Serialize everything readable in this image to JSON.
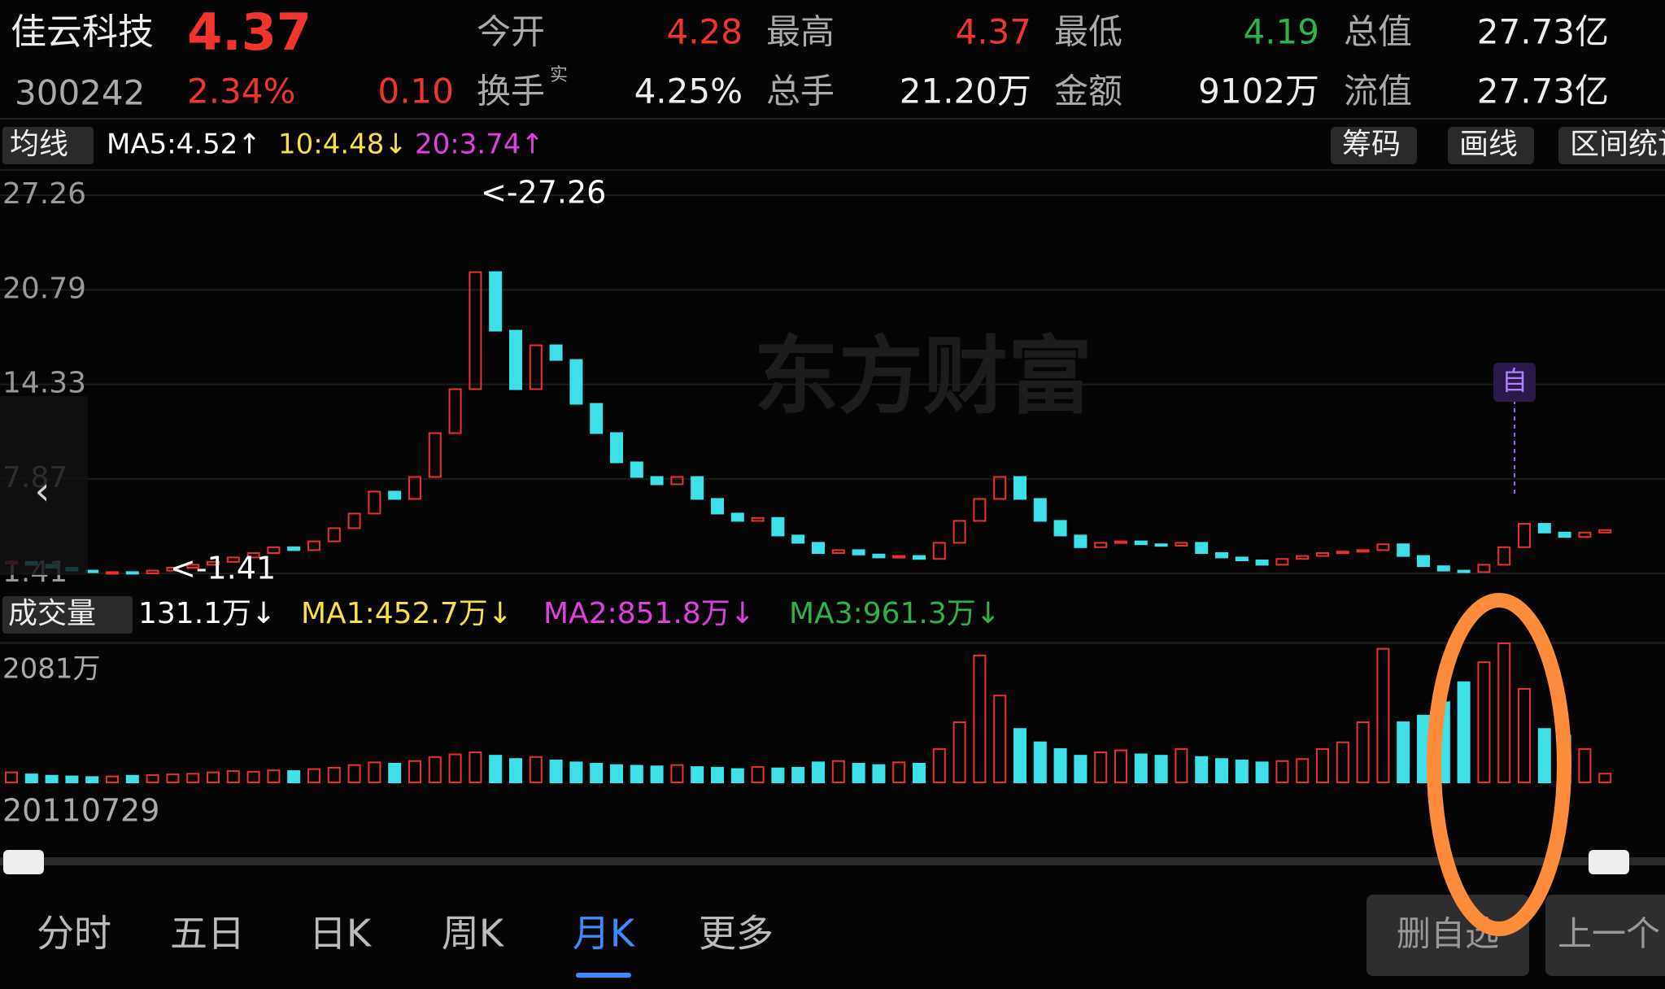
{
  "header": {
    "name": "佳云科技",
    "price": "4.37",
    "code": "300242",
    "change_pct": "2.34%",
    "change": "0.10",
    "fields": [
      {
        "label": "今开",
        "value": "4.28"
      },
      {
        "label": "最高",
        "value": "4.37"
      },
      {
        "label": "最低",
        "value": "4.19"
      },
      {
        "label": "总值",
        "value": "27.73亿"
      },
      {
        "label": "换手",
        "sup": "实",
        "value": "4.25%"
      },
      {
        "label": "总手",
        "value": "21.20万"
      },
      {
        "label": "金额",
        "value": "9102万"
      },
      {
        "label": "流值",
        "value": "27.73亿"
      }
    ]
  },
  "ma_bar": {
    "selector": "均线",
    "ma5": "MA5:4.52↑",
    "ma10": "10:4.48↓",
    "ma20": "20:3.74↑"
  },
  "tools": [
    "筹码",
    "画线",
    "区间统计"
  ],
  "price_chart": {
    "yticks": [
      27.26,
      20.79,
      14.33,
      7.87,
      1.41
    ],
    "max_label": "<-27.26",
    "min_label": "<-1.41",
    "watermark": "东方财富",
    "marker": "自",
    "closes": [
      2.2,
      2.0,
      1.8,
      1.6,
      1.5,
      1.5,
      1.41,
      1.6,
      1.8,
      2.0,
      2.2,
      2.5,
      2.8,
      3.2,
      3.0,
      3.6,
      4.5,
      5.5,
      7.0,
      6.5,
      8.0,
      11,
      14,
      22,
      18,
      14,
      17,
      16,
      13,
      11,
      9,
      8,
      7.5,
      8,
      6.5,
      5.5,
      5,
      5.2,
      4,
      3.5,
      2.8,
      3.0,
      2.7,
      2.5,
      2.6,
      2.4,
      3.5,
      5,
      6.5,
      8,
      6.5,
      5,
      4,
      3.2,
      3.5,
      3.6,
      3.4,
      3.3,
      3.5,
      2.8,
      2.5,
      2.3,
      2.0,
      2.4,
      2.6,
      2.8,
      2.9,
      3.0,
      3.4,
      2.6,
      1.9,
      1.6,
      1.5,
      2.0,
      3.2,
      4.8,
      4.2,
      3.9,
      4.2,
      4.37
    ]
  },
  "volume": {
    "selector": "成交量",
    "current": "131.1万↓",
    "ma1": "MA1:452.7万↓",
    "ma2": "MA2:851.8万↓",
    "ma3": "MA3:961.3万↓",
    "axis": {
      "value": 2081,
      "label": "2081万"
    },
    "values": [
      150,
      120,
      100,
      90,
      80,
      90,
      100,
      110,
      120,
      130,
      150,
      170,
      160,
      180,
      170,
      200,
      220,
      260,
      300,
      280,
      320,
      380,
      420,
      450,
      400,
      350,
      380,
      330,
      300,
      280,
      260,
      250,
      240,
      260,
      230,
      220,
      200,
      230,
      210,
      220,
      300,
      320,
      280,
      260,
      300,
      280,
      500,
      900,
      1900,
      1300,
      800,
      600,
      500,
      400,
      450,
      480,
      420,
      400,
      500,
      380,
      350,
      330,
      300,
      320,
      350,
      500,
      600,
      900,
      2000,
      900,
      1000,
      1200,
      1500,
      1800,
      2081,
      1400,
      800,
      700,
      500,
      131.1
    ]
  },
  "start_date": "20110729",
  "tabs": [
    "分时",
    "五日",
    "日K",
    "周K",
    "月K",
    "更多"
  ],
  "active_tab": 4,
  "buttons": [
    "删自选",
    "上一个"
  ]
}
